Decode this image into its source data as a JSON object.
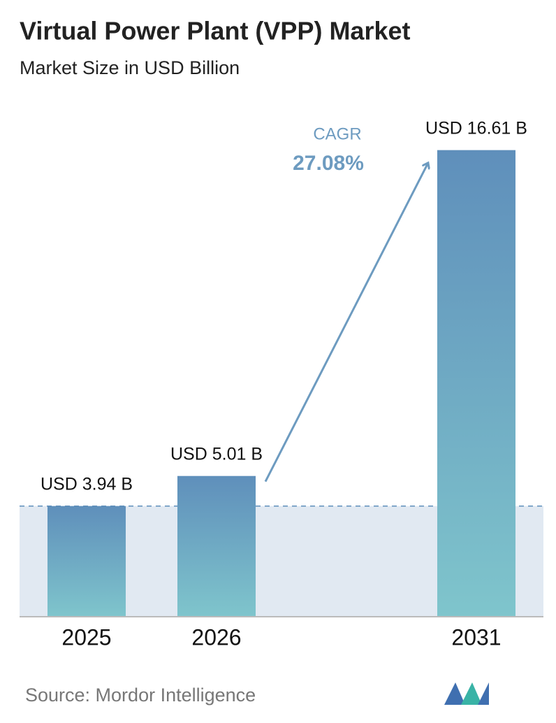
{
  "chart_data": {
    "type": "bar",
    "title": "Virtual Power Plant (VPP) Market",
    "subtitle": "Market Size in USD Billion",
    "categories": [
      "2025",
      "2026",
      "2031"
    ],
    "values": [
      3.94,
      5.01,
      16.61
    ],
    "value_labels": [
      "USD 3.94 B",
      "USD 5.01 B",
      "USD 16.61 B"
    ],
    "ylim": [
      0,
      17
    ],
    "annotation": {
      "label": "CAGR",
      "value": "27.08%"
    },
    "source": "Source:  Mordor Intelligence"
  }
}
